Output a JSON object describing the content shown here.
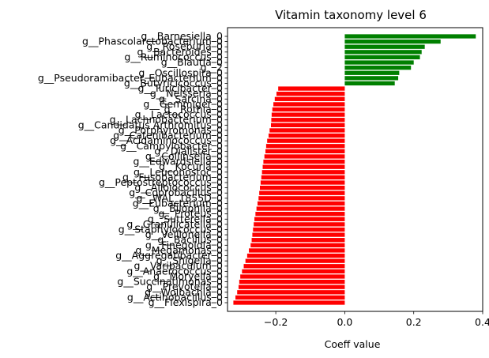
{
  "chart_data": {
    "type": "bar",
    "orientation": "horizontal",
    "title": "Vitamin taxonomy level 6",
    "xlabel": "Coeff value",
    "ylabel": "",
    "xlim": [
      -0.34,
      0.4
    ],
    "xticks": [
      -0.2,
      0.0,
      0.2,
      0.4
    ],
    "xtick_labels": [
      "−0.2",
      "0.0",
      "0.2",
      "0.4"
    ],
    "grid": false,
    "legend": "none",
    "positive_color": "#008000",
    "negative_color": "#ff0000",
    "categories": [
      "g__Barnesiella_0",
      "g__Phascolarctobacterium_0",
      "g__Roseburia_0",
      "g__Bacteroides_0",
      "g__Ruminococcus_0",
      "g__Blautia_0",
      "g__2",
      "g__Oscillospira_0",
      "g__Pseudoramibacter_Eubacterium_0",
      "g__Butyricicoccus_0",
      "g__Turicibacter_0",
      "g__Neisseria_0",
      "g__Sarcina_0",
      "g__Gemmiger_0",
      "g__Rothia_0",
      "g__Lactococcus_0",
      "g__Lachnobacterium_0",
      "g__Candidatus Arthromitus_0",
      "g__Porphyromonas_0",
      "g__Catenibacterium_0",
      "g__Acidaminococcus_0",
      "g__Campylobacter_0",
      "g__Dialister_0",
      "g__Collinsella_0",
      "g__Edwardsiella_0",
      "g__Kocuria_0",
      "g__Leuconostoc_0",
      "g__Fusobacterium_0",
      "g__Peptostreptococcus_0",
      "g__Alloiococcus_0",
      "g__Coprobacillus_0",
      "g__WAL_1855D_0",
      "g__Eubacterium_0",
      "g__Bilophila_0",
      "g__Proteus_0",
      "g__Sutterella_0",
      "g__Granulicatella_0",
      "g__Staphylococcus_0",
      "g__Veillonella_0",
      "g__Bacillus_0",
      "g__Finegoldia_0",
      "g__Megamonas_0",
      "g__Aggregatibacter_0",
      "g__Shigella_0",
      "g__Varibaculum_0",
      "g__Anaerococcus_0",
      "g__Moryella_0",
      "g__Succinatimonas_0",
      "g__Prevotella_0",
      "g__Wolbachia_0",
      "g__Actinobacillus_0",
      "g__Flexispira_0"
    ],
    "values": [
      0.38,
      0.278,
      0.232,
      0.223,
      0.218,
      0.2,
      0.192,
      0.158,
      0.155,
      0.145,
      -0.193,
      -0.198,
      -0.203,
      -0.207,
      -0.21,
      -0.212,
      -0.213,
      -0.214,
      -0.218,
      -0.221,
      -0.225,
      -0.228,
      -0.23,
      -0.233,
      -0.236,
      -0.238,
      -0.24,
      -0.242,
      -0.244,
      -0.246,
      -0.248,
      -0.25,
      -0.253,
      -0.256,
      -0.259,
      -0.262,
      -0.264,
      -0.266,
      -0.268,
      -0.27,
      -0.273,
      -0.278,
      -0.283,
      -0.288,
      -0.293,
      -0.298,
      -0.303,
      -0.306,
      -0.308,
      -0.312,
      -0.317,
      -0.323
    ]
  }
}
